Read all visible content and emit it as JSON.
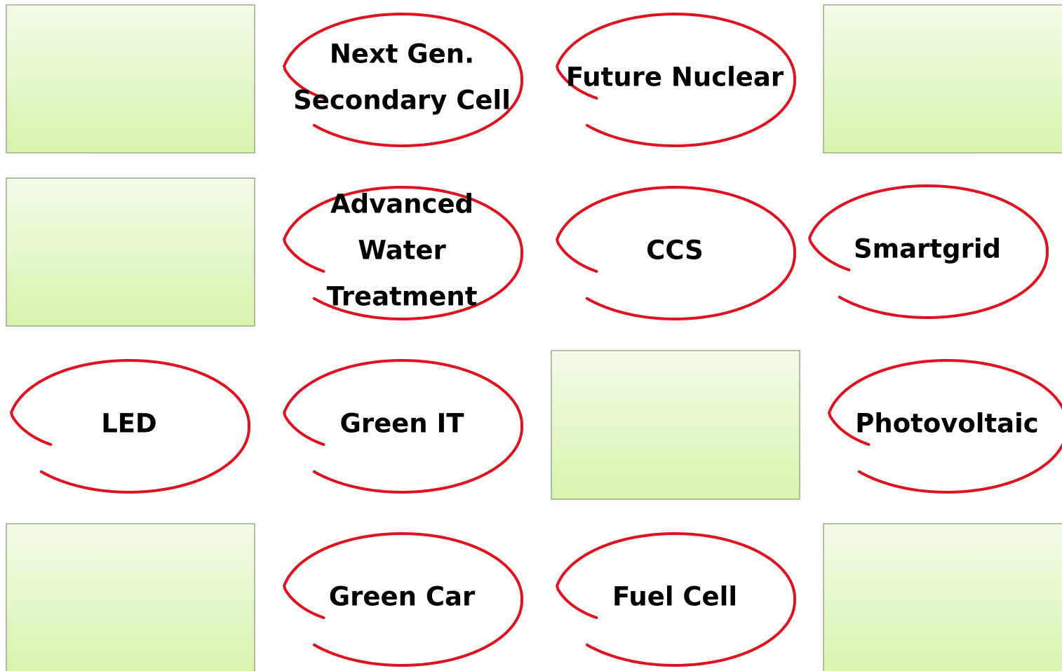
{
  "cells": [
    {
      "lines": [
        "Next Gen.",
        "Secondary Cell"
      ]
    },
    {
      "lines": [
        "Future Nuclear"
      ]
    },
    {
      "lines": [
        "Advanced",
        "Water",
        "Treatment"
      ]
    },
    {
      "lines": [
        "CCS"
      ]
    },
    {
      "lines": [
        "Smartgrid"
      ]
    },
    {
      "lines": [
        "LED"
      ]
    },
    {
      "lines": [
        "Green IT"
      ]
    },
    {
      "lines": [
        "Photovoltaic"
      ]
    },
    {
      "lines": [
        "Green Car"
      ]
    },
    {
      "lines": [
        "Fuel Cell"
      ]
    }
  ]
}
